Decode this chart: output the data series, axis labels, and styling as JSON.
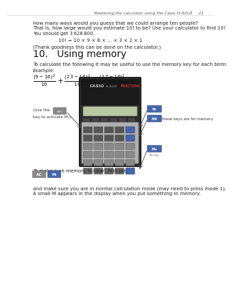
{
  "background_color": "#ffffff",
  "header_text": "Mastering the calculator using the Casio fx-82LB",
  "header_page": "21",
  "body_lines": [
    "How many ways would you guess that we could arrange ten people?",
    "That is, how large would you estimate 10! to be? Use your calculator to find 10!",
    "You should get 3 628 800.",
    "10! = 10 × 9 × 8 × ... × 3 × 2 × 1",
    "(Thank goodness this can be done on the calculator.)"
  ],
  "section_title": "10.   Using memory",
  "sub_text1": "To calculate the following it may be useful to use the memory key for each term:",
  "example_label": "Example:",
  "annotation_these": "these keys are for memory",
  "bottom_text1": "To make sure memory is clear, first press",
  "bottom_text2": "and make sure you are in normal calculation mode (may need to press mode 1).",
  "bottom_text3": "A small M appears in the display when you put something in memory."
}
